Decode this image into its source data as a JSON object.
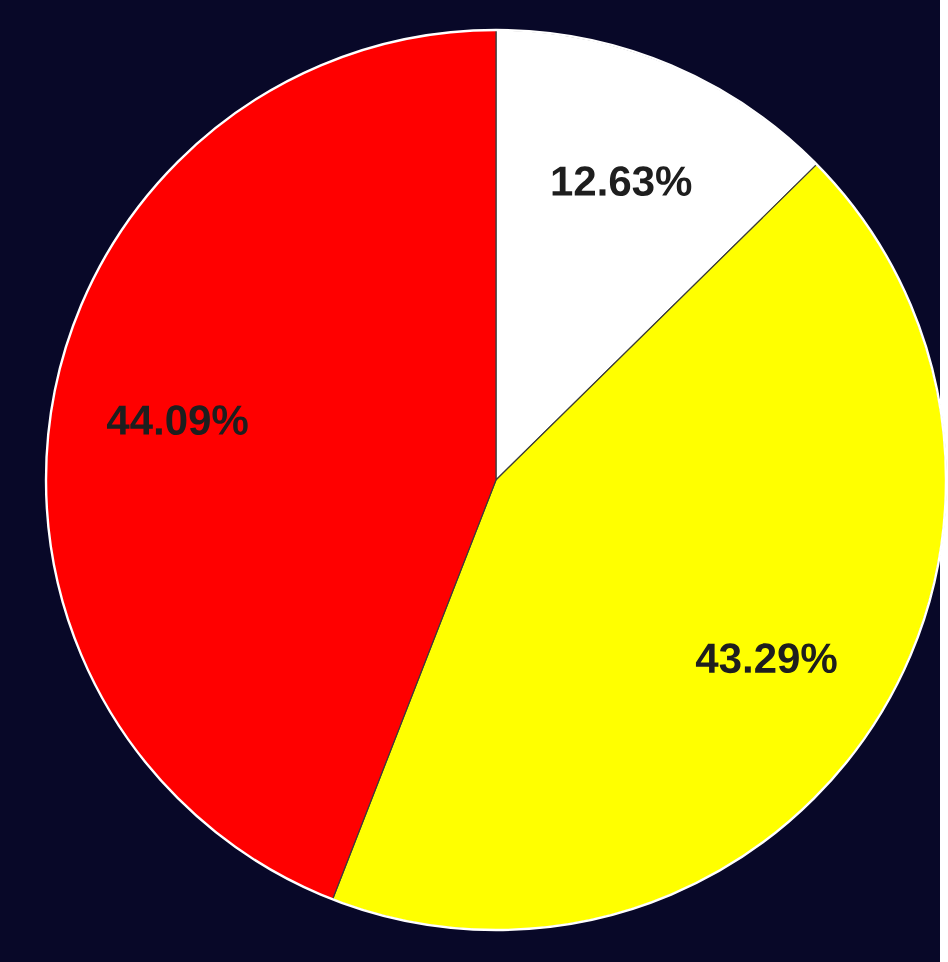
{
  "chart_data": {
    "type": "pie",
    "categories": [
      null,
      null,
      null
    ],
    "values": [
      12.63,
      43.29,
      44.09
    ],
    "colors": [
      "#ffffff",
      "#ffff00",
      "#ff0000"
    ],
    "value_labels": [
      "12.63%",
      "43.29%",
      "44.09%"
    ],
    "data_labels": true
  }
}
